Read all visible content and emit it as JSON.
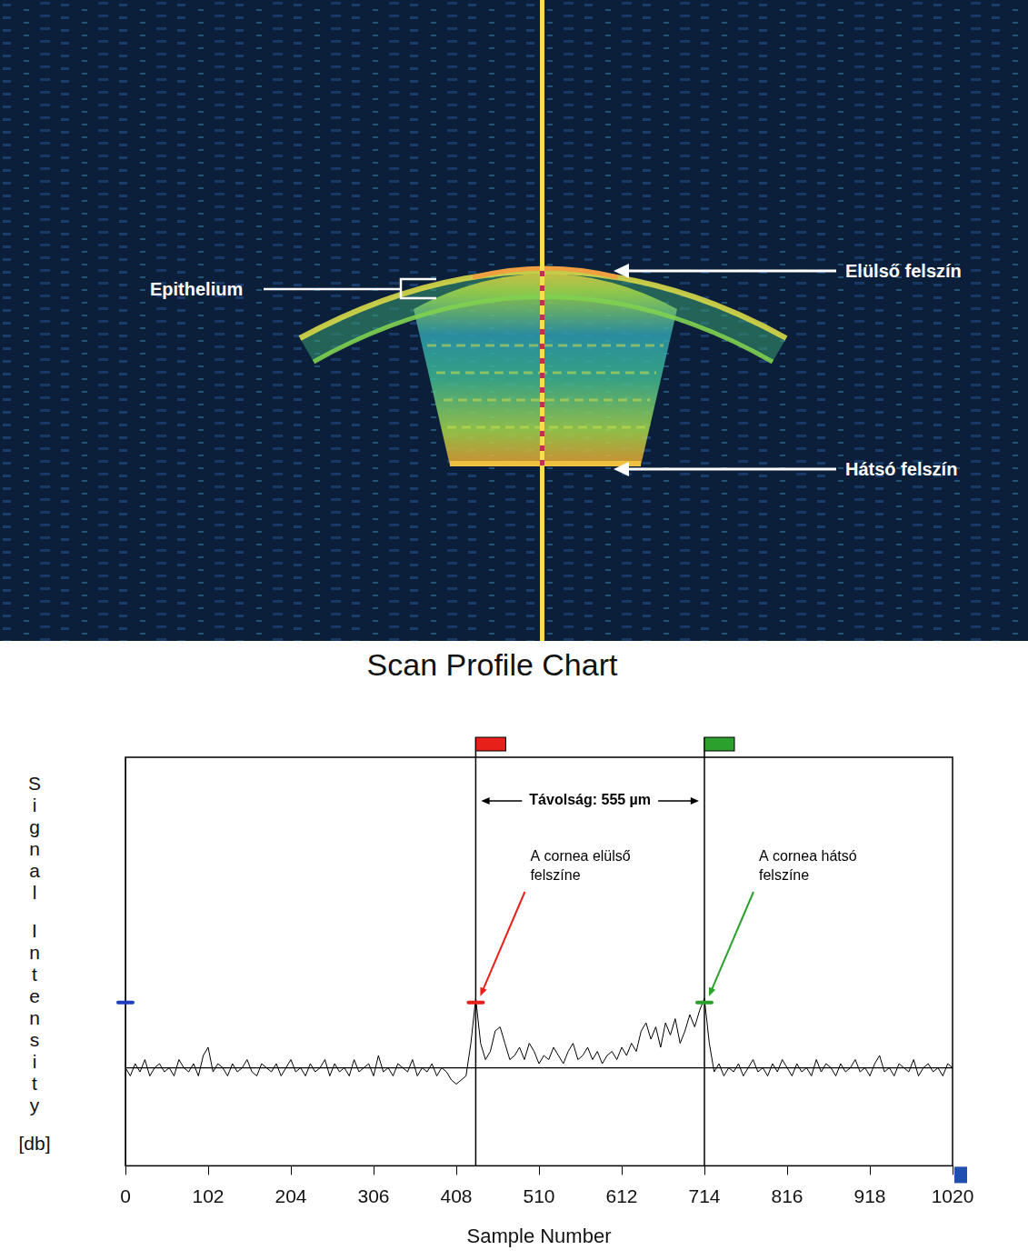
{
  "scan_image": {
    "labels": {
      "epithelium": "Epithelium",
      "anterior": "Elülső felszín",
      "posterior": "Hátsó felszín"
    }
  },
  "chart_data": {
    "type": "line",
    "title": "Scan Profile Chart",
    "x_label": "Sample Number",
    "y_label": "Signal Intensity [db]",
    "x": [
      0,
      6,
      12,
      18,
      24,
      30,
      36,
      42,
      48,
      54,
      60,
      66,
      72,
      78,
      84,
      90,
      96,
      102,
      108,
      114,
      120,
      126,
      132,
      138,
      144,
      150,
      156,
      162,
      168,
      174,
      180,
      186,
      192,
      198,
      204,
      210,
      216,
      222,
      228,
      234,
      240,
      246,
      252,
      258,
      264,
      270,
      276,
      282,
      288,
      294,
      300,
      306,
      312,
      318,
      324,
      330,
      336,
      342,
      348,
      354,
      360,
      366,
      372,
      378,
      384,
      390,
      396,
      402,
      408,
      414,
      420,
      426,
      432,
      438,
      444,
      450,
      456,
      462,
      468,
      474,
      480,
      486,
      492,
      498,
      504,
      510,
      516,
      522,
      528,
      534,
      540,
      546,
      552,
      558,
      564,
      570,
      576,
      582,
      588,
      594,
      600,
      606,
      612,
      618,
      624,
      630,
      636,
      642,
      648,
      654,
      660,
      666,
      672,
      678,
      684,
      690,
      696,
      702,
      708,
      714,
      720,
      726,
      732,
      738,
      744,
      750,
      756,
      762,
      768,
      774,
      780,
      786,
      792,
      798,
      804,
      810,
      816,
      822,
      828,
      834,
      840,
      846,
      852,
      858,
      864,
      870,
      876,
      882,
      888,
      894,
      900,
      906,
      912,
      918,
      924,
      930,
      936,
      942,
      948,
      954,
      960,
      966,
      972,
      978,
      984,
      990,
      996,
      1002,
      1008,
      1014,
      1020
    ],
    "values": [
      24,
      22,
      25,
      23,
      26,
      22,
      24,
      25,
      23,
      24,
      22,
      26,
      24,
      23,
      25,
      22,
      27,
      29,
      23,
      25,
      24,
      22,
      25,
      23,
      24,
      26,
      23,
      22,
      25,
      24,
      23,
      25,
      22,
      24,
      26,
      23,
      24,
      22,
      25,
      23,
      24,
      26,
      22,
      25,
      23,
      24,
      22,
      26,
      23,
      24,
      25,
      22,
      27,
      23,
      24,
      22,
      25,
      24,
      23,
      26,
      22,
      24,
      23,
      25,
      22,
      24,
      23,
      21,
      20,
      21,
      22,
      30,
      41,
      30,
      26,
      28,
      33,
      34,
      30,
      26,
      27,
      29,
      26,
      30,
      28,
      25,
      27,
      26,
      29,
      27,
      25,
      28,
      30,
      26,
      27,
      29,
      26,
      28,
      25,
      27,
      28,
      26,
      29,
      27,
      30,
      28,
      33,
      35,
      31,
      34,
      29,
      35,
      32,
      36,
      30,
      33,
      37,
      34,
      38,
      41,
      30,
      23,
      25,
      22,
      24,
      23,
      25,
      22,
      24,
      26,
      23,
      24,
      22,
      25,
      23,
      26,
      24,
      22,
      25,
      23,
      24,
      22,
      26,
      23,
      25,
      24,
      22,
      25,
      23,
      24,
      26,
      23,
      24,
      22,
      25,
      27,
      23,
      24,
      22,
      25,
      24,
      23,
      26,
      22,
      24,
      25,
      23,
      24,
      22,
      25,
      24
    ],
    "color": "#000000",
    "baseline": 24,
    "xlim": [
      0,
      1020
    ],
    "xticks": [
      0,
      102,
      204,
      306,
      408,
      510,
      612,
      714,
      816,
      918,
      1020
    ],
    "ylim": [
      0,
      100
    ],
    "grid": false,
    "tick_labels": "x",
    "cursors": [
      {
        "x": 432,
        "color": "#e8201a",
        "label": "A cornea elülső felszíne"
      },
      {
        "x": 714,
        "color": "#2ca02c",
        "label": "A cornea hátsó felszíne"
      }
    ],
    "distance_label": "Távolság: 555 µm",
    "level": 40,
    "level_marks": [
      {
        "x": 0,
        "color": "#1f3fbf"
      },
      {
        "x": 432,
        "color": "#e8201a"
      },
      {
        "x": 714,
        "color": "#2ca02c"
      }
    ],
    "end_marker": {
      "x": 1020,
      "color": "#1f4fb0"
    }
  }
}
